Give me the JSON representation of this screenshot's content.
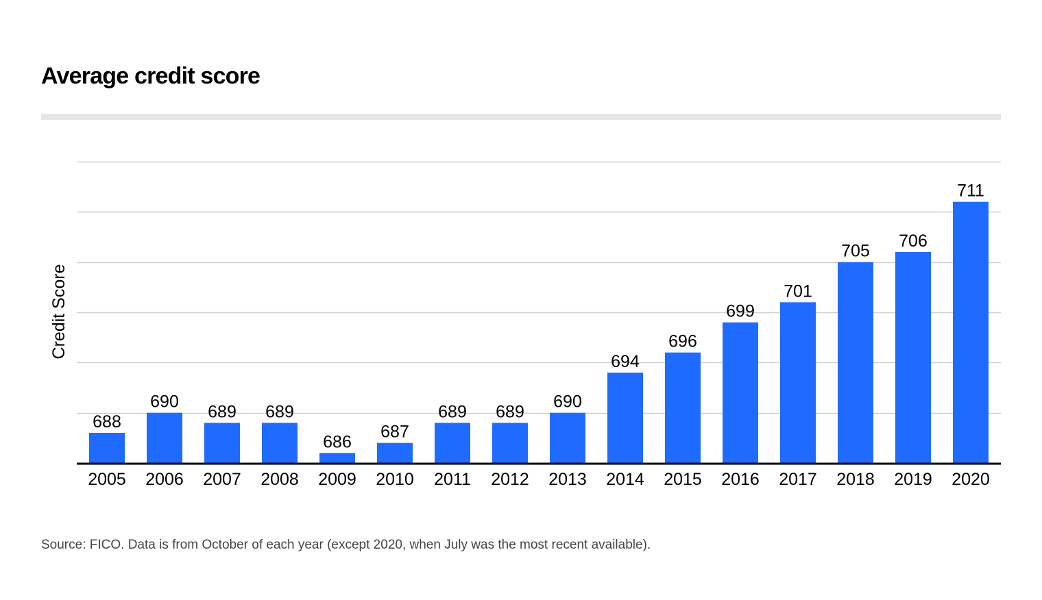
{
  "title": "Average credit score",
  "source": "Source: FICO. Data is from October of each year (except 2020, when July was the most recent available).",
  "colors": {
    "bar": "#1f6bff",
    "grid": "#cfcfcf",
    "axis": "#000000",
    "title_rule": "#e6e6e6"
  },
  "chart_data": {
    "type": "bar",
    "title": "Average credit score",
    "xlabel": "",
    "ylabel": "Credit Score",
    "categories": [
      "2005",
      "2006",
      "2007",
      "2008",
      "2009",
      "2010",
      "2011",
      "2012",
      "2013",
      "2014",
      "2015",
      "2016",
      "2017",
      "2018",
      "2019",
      "2020"
    ],
    "values": [
      688,
      690,
      689,
      689,
      686,
      687,
      689,
      689,
      690,
      694,
      696,
      699,
      701,
      705,
      706,
      711
    ],
    "data_labels": [
      "688",
      "690",
      "689",
      "689",
      "686",
      "687",
      "689",
      "689",
      "690",
      "694",
      "696",
      "699",
      "701",
      "705",
      "706",
      "711"
    ],
    "ylim": [
      685,
      715
    ],
    "y_tick_labels_shown": false,
    "grid": true,
    "legend": "none"
  }
}
